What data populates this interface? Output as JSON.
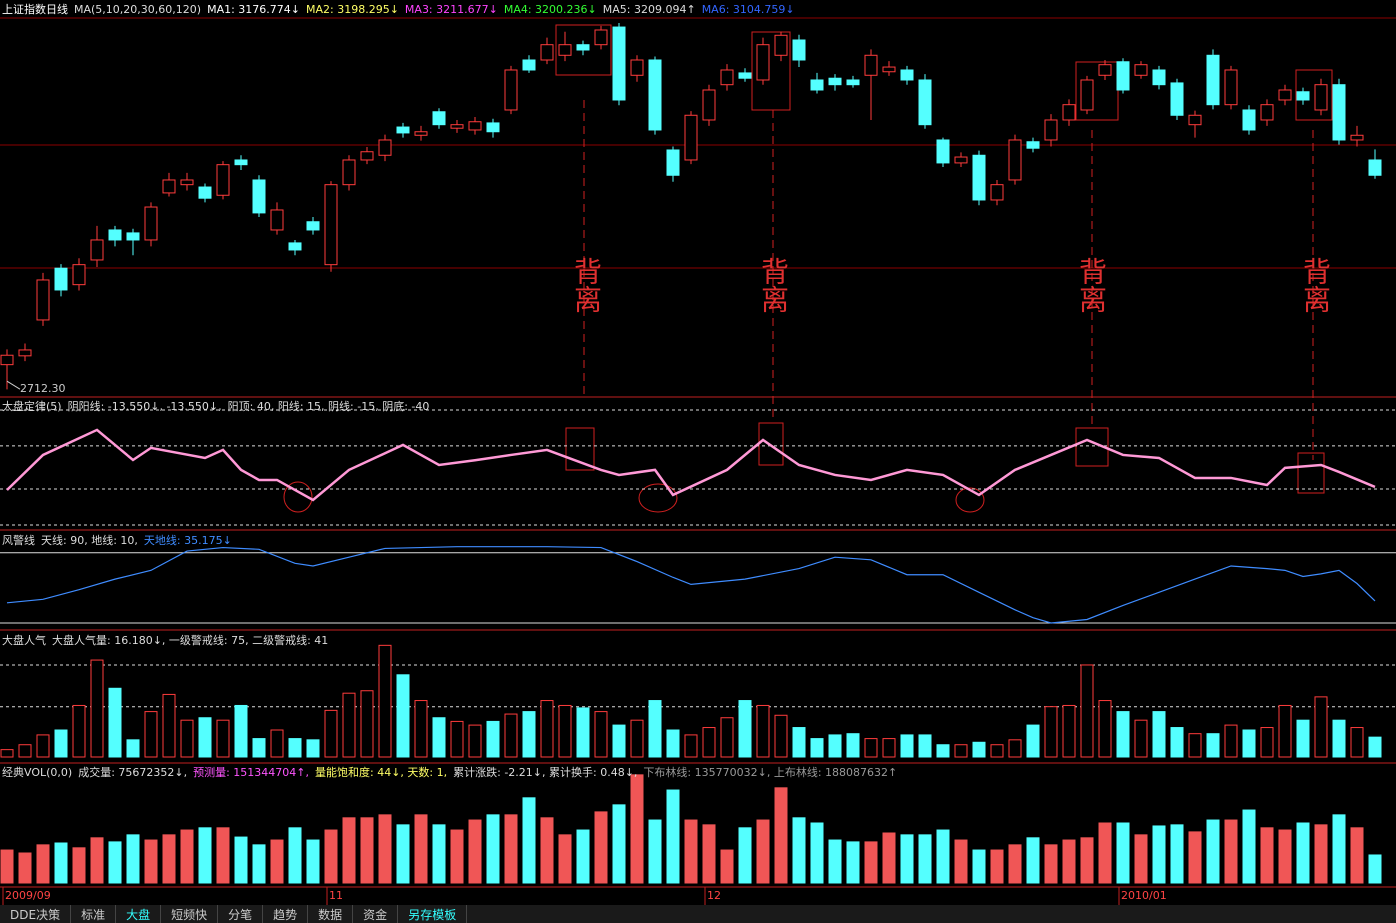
{
  "chart_data": [
    {
      "type": "candlestick",
      "header": [
        {
          "text": "上证指数日线",
          "color": "#ffffff"
        },
        {
          "text": "MA(5,10,20,30,60,120)",
          "color": "#dddddd"
        },
        {
          "text": "MA1: 3176.774↓",
          "color": "#ffffff"
        },
        {
          "text": "MA2: 3198.295↓",
          "color": "#ffff66"
        },
        {
          "text": "MA3: 3211.677↓",
          "color": "#ff44ff"
        },
        {
          "text": "MA4: 3200.236↓",
          "color": "#33ff33"
        },
        {
          "text": "MA5: 3209.094↑",
          "color": "#dddddd"
        },
        {
          "text": "MA6: 3104.759↓",
          "color": "#3366ff"
        }
      ],
      "categories": [
        "2009/09",
        null,
        null,
        null,
        null,
        null,
        null,
        null,
        null,
        null,
        null,
        null,
        null,
        null,
        null,
        null,
        null,
        null,
        "11",
        null,
        null,
        null,
        null,
        null,
        null,
        null,
        null,
        null,
        null,
        null,
        null,
        null,
        null,
        null,
        null,
        null,
        null,
        null,
        null,
        "12",
        null,
        null,
        null,
        null,
        null,
        null,
        null,
        null,
        null,
        null,
        null,
        null,
        null,
        null,
        null,
        null,
        null,
        null,
        null,
        null,
        null,
        null,
        "2010/01",
        null,
        null,
        null,
        null,
        null,
        null,
        null,
        null,
        null,
        null,
        null,
        null,
        null,
        null
      ],
      "open": [
        2754,
        2769,
        2830,
        2918,
        2890,
        2932,
        2983,
        2978,
        2966,
        3046,
        3060,
        3056,
        3042,
        3102,
        3068,
        2983,
        2961,
        2997,
        2924,
        3060,
        3102,
        3110,
        3158,
        3144,
        3184,
        3156,
        3153,
        3165,
        3187,
        3272,
        3272,
        3280,
        3298,
        3298,
        3328,
        3246,
        3272,
        3119,
        3102,
        3170,
        3230,
        3250,
        3238,
        3280,
        3306,
        3238,
        3241,
        3238,
        3246,
        3252,
        3255,
        3238,
        3136,
        3097,
        3110,
        3034,
        3068,
        3133,
        3136,
        3170,
        3187,
        3246,
        3269,
        3246,
        3255,
        3233,
        3162,
        3280,
        3196,
        3187,
        3170,
        3204,
        3218,
        3187,
        3230,
        3136,
        3102
      ],
      "close": [
        2770,
        2779,
        2898,
        2881,
        2924,
        2966,
        2966,
        2966,
        3022,
        3068,
        3068,
        3037,
        3094,
        3094,
        3012,
        3017,
        2949,
        2983,
        3060,
        3102,
        3116,
        3136,
        3148,
        3150,
        3162,
        3162,
        3167,
        3150,
        3255,
        3255,
        3298,
        3298,
        3289,
        3323,
        3204,
        3272,
        3153,
        3076,
        3178,
        3221,
        3255,
        3241,
        3298,
        3314,
        3272,
        3221,
        3230,
        3230,
        3280,
        3260,
        3238,
        3162,
        3097,
        3107,
        3034,
        3060,
        3136,
        3122,
        3170,
        3196,
        3238,
        3264,
        3221,
        3264,
        3230,
        3178,
        3178,
        3196,
        3255,
        3153,
        3196,
        3221,
        3204,
        3230,
        3136,
        3144,
        3076
      ],
      "high": [
        2780,
        2790,
        2910,
        2925,
        2935,
        2990,
        2990,
        2985,
        3030,
        3080,
        3080,
        3062,
        3100,
        3110,
        3076,
        3030,
        2966,
        3005,
        3066,
        3110,
        3124,
        3145,
        3165,
        3160,
        3190,
        3170,
        3175,
        3172,
        3262,
        3280,
        3310,
        3320,
        3305,
        3330,
        3335,
        3280,
        3278,
        3125,
        3185,
        3230,
        3265,
        3258,
        3310,
        3320,
        3315,
        3250,
        3248,
        3245,
        3290,
        3270,
        3262,
        3248,
        3140,
        3115,
        3118,
        3068,
        3145,
        3140,
        3180,
        3205,
        3245,
        3272,
        3275,
        3270,
        3262,
        3240,
        3186,
        3290,
        3262,
        3195,
        3205,
        3230,
        3225,
        3240,
        3240,
        3160,
        3120
      ],
      "low": [
        2712,
        2760,
        2820,
        2870,
        2880,
        2920,
        2955,
        2940,
        2955,
        3040,
        3050,
        3030,
        3035,
        3085,
        3005,
        2975,
        2940,
        2975,
        2912,
        3050,
        3095,
        3100,
        3140,
        3135,
        3155,
        3148,
        3145,
        3140,
        3180,
        3250,
        3265,
        3270,
        3280,
        3290,
        3195,
        3235,
        3145,
        3065,
        3095,
        3160,
        3220,
        3235,
        3230,
        3270,
        3260,
        3215,
        3220,
        3225,
        3170,
        3245,
        3230,
        3155,
        3090,
        3090,
        3025,
        3025,
        3060,
        3115,
        3125,
        3160,
        3180,
        3238,
        3215,
        3240,
        3222,
        3170,
        3140,
        3188,
        3188,
        3145,
        3160,
        3195,
        3196,
        3178,
        3128,
        3125,
        3070
      ],
      "up_color": "#ff3c3c",
      "down_color": "#54ffff",
      "ylim": [
        2699,
        3374
      ],
      "low_label": {
        "value": 2712.3,
        "label": "2712.30"
      },
      "annotations": [
        "背离",
        "背离",
        "背离",
        "背离"
      ]
    },
    {
      "type": "line",
      "header": [
        {
          "text": "大盘定律(5)",
          "color": "#dddddd"
        },
        {
          "text": "阴阳线: -13.550↓, -13.550↓,",
          "color": "#dddddd"
        },
        {
          "text": "阳顶: 40, 阳线: 15, 阴线: -15, 阴底: -40",
          "color": "#dddddd"
        }
      ],
      "x": [
        0,
        2,
        5,
        7,
        8,
        11,
        12,
        13,
        14,
        15,
        17,
        19,
        22,
        24,
        26,
        28,
        30,
        33,
        34,
        36,
        37,
        40,
        42,
        44,
        46,
        48,
        50,
        52,
        54,
        56,
        58,
        60,
        62,
        64,
        66,
        68,
        70,
        71,
        73,
        74,
        76
      ],
      "values": [
        -15.7,
        8.7,
        26.1,
        5.2,
        13.6,
        6.6,
        12.2,
        -1.7,
        -8.7,
        -8.7,
        -22.6,
        -1.7,
        15.7,
        1.7,
        5,
        8.7,
        12.2,
        -1.7,
        -5.2,
        -1.7,
        -19.1,
        -1.7,
        19.1,
        1.7,
        -5.2,
        -8.7,
        -1.7,
        -5.2,
        -19.1,
        -1.7,
        8.7,
        19.1,
        8.7,
        6.6,
        -7.3,
        -7.3,
        -12.2,
        -0.3,
        1.7,
        -3.1,
        -13.55
      ],
      "color": "#ff99d6",
      "ylim": [
        -43.5,
        49
      ],
      "ref_lines": [
        40,
        15,
        -15,
        -40
      ],
      "ref_style": "dashed"
    },
    {
      "type": "line",
      "header": [
        {
          "text": "风警线",
          "color": "#dddddd"
        },
        {
          "text": "天线: 90, 地线: 10,",
          "color": "#dddddd"
        },
        {
          "text": "天地线: 35.175↓",
          "color": "#3f8cff"
        }
      ],
      "x": [
        0,
        2,
        4,
        6,
        8,
        10,
        12,
        14,
        16,
        17,
        19,
        21,
        25,
        30,
        33,
        35,
        37,
        38,
        41,
        44,
        46,
        48,
        50,
        52,
        54,
        56,
        57,
        58,
        60,
        62,
        64,
        66,
        68,
        70,
        71,
        72,
        73,
        74,
        75,
        76
      ],
      "values": [
        33,
        37,
        48,
        60,
        70,
        92,
        96,
        94,
        78,
        75,
        85,
        95,
        97,
        97,
        96,
        80,
        62,
        54,
        60,
        72,
        85,
        82,
        65,
        65,
        45,
        25,
        16,
        10,
        14,
        30,
        45,
        60,
        75,
        72,
        70,
        63,
        66,
        70,
        55,
        35.175
      ],
      "color": "#3f8cff",
      "ylim": [
        2,
        116
      ],
      "ref_lines": [
        90,
        10
      ],
      "ref_style": "solid"
    },
    {
      "type": "bar",
      "header": [
        {
          "text": "大盘人气",
          "color": "#dddddd"
        },
        {
          "text": "大盘人气量: 16.180↓, 一级警戒线: 75, 二级警戒线: 41",
          "color": "#dddddd"
        }
      ],
      "values": [
        6,
        10,
        18,
        22,
        42,
        79,
        56,
        14,
        37,
        51,
        30,
        32,
        30,
        42,
        15,
        22,
        15,
        14,
        38,
        52,
        54,
        91,
        67,
        46,
        32,
        29,
        26,
        29,
        35,
        37,
        46,
        42,
        40,
        37,
        26,
        30,
        46,
        22,
        18,
        24,
        32,
        46,
        42,
        34,
        24,
        15,
        18,
        19,
        15,
        15,
        18,
        18,
        10,
        10,
        12,
        10,
        14,
        26,
        41,
        42,
        75,
        46,
        37,
        30,
        37,
        24,
        19,
        19,
        26,
        22,
        24,
        42,
        30,
        49,
        30,
        24,
        16.18
      ],
      "ylim": [
        0,
        103.5
      ],
      "ref_lines": [
        75,
        41
      ],
      "ref_style": "dashed",
      "up_style": "hollow"
    },
    {
      "type": "bar",
      "header": [
        {
          "text": "经典VOL(0,0)",
          "color": "#dddddd"
        },
        {
          "text": "成交量: 75672352↓,",
          "color": "#dddddd"
        },
        {
          "text": "预测量: 151344704↑,",
          "color": "#ff55ff"
        },
        {
          "text": "量能饱和度: 44↓, 天数: 1,",
          "color": "#ffff66"
        },
        {
          "text": "累计涨跌: -2.21↓, 累计换手: 0.48↓,",
          "color": "#dddddd"
        },
        {
          "text": "下布林线: 135770032↓, 上布林线: 188087632↑",
          "color": "#999999"
        }
      ],
      "values": [
        89000000,
        81000000,
        103000000,
        108000000,
        95000000,
        122000000,
        111000000,
        130000000,
        116000000,
        130000000,
        143000000,
        149000000,
        149000000,
        124000000,
        103000000,
        116000000,
        149000000,
        116000000,
        143000000,
        176000000,
        176000000,
        184000000,
        157000000,
        184000000,
        157000000,
        143000000,
        170000000,
        184000000,
        184000000,
        230000000,
        176000000,
        130000000,
        143000000,
        192000000,
        211000000,
        292000000,
        170000000,
        251000000,
        170000000,
        157000000,
        89000000,
        149000000,
        170000000,
        257000000,
        176000000,
        162000000,
        116000000,
        111000000,
        111000000,
        135000000,
        130000000,
        130000000,
        143000000,
        116000000,
        89000000,
        89000000,
        103000000,
        122000000,
        103000000,
        116000000,
        122000000,
        162000000,
        162000000,
        130000000,
        154000000,
        157000000,
        138000000,
        170000000,
        170000000,
        197000000,
        149000000,
        143000000,
        162000000,
        157000000,
        184000000,
        149000000,
        75672352
      ],
      "ylim": [
        0,
        324000000
      ],
      "up_style": "filled"
    }
  ],
  "tabs": [
    "DDE决策",
    "标准",
    "大盘",
    "短频快",
    "分笔",
    "趋势",
    "数据",
    "资金",
    "另存模板"
  ]
}
